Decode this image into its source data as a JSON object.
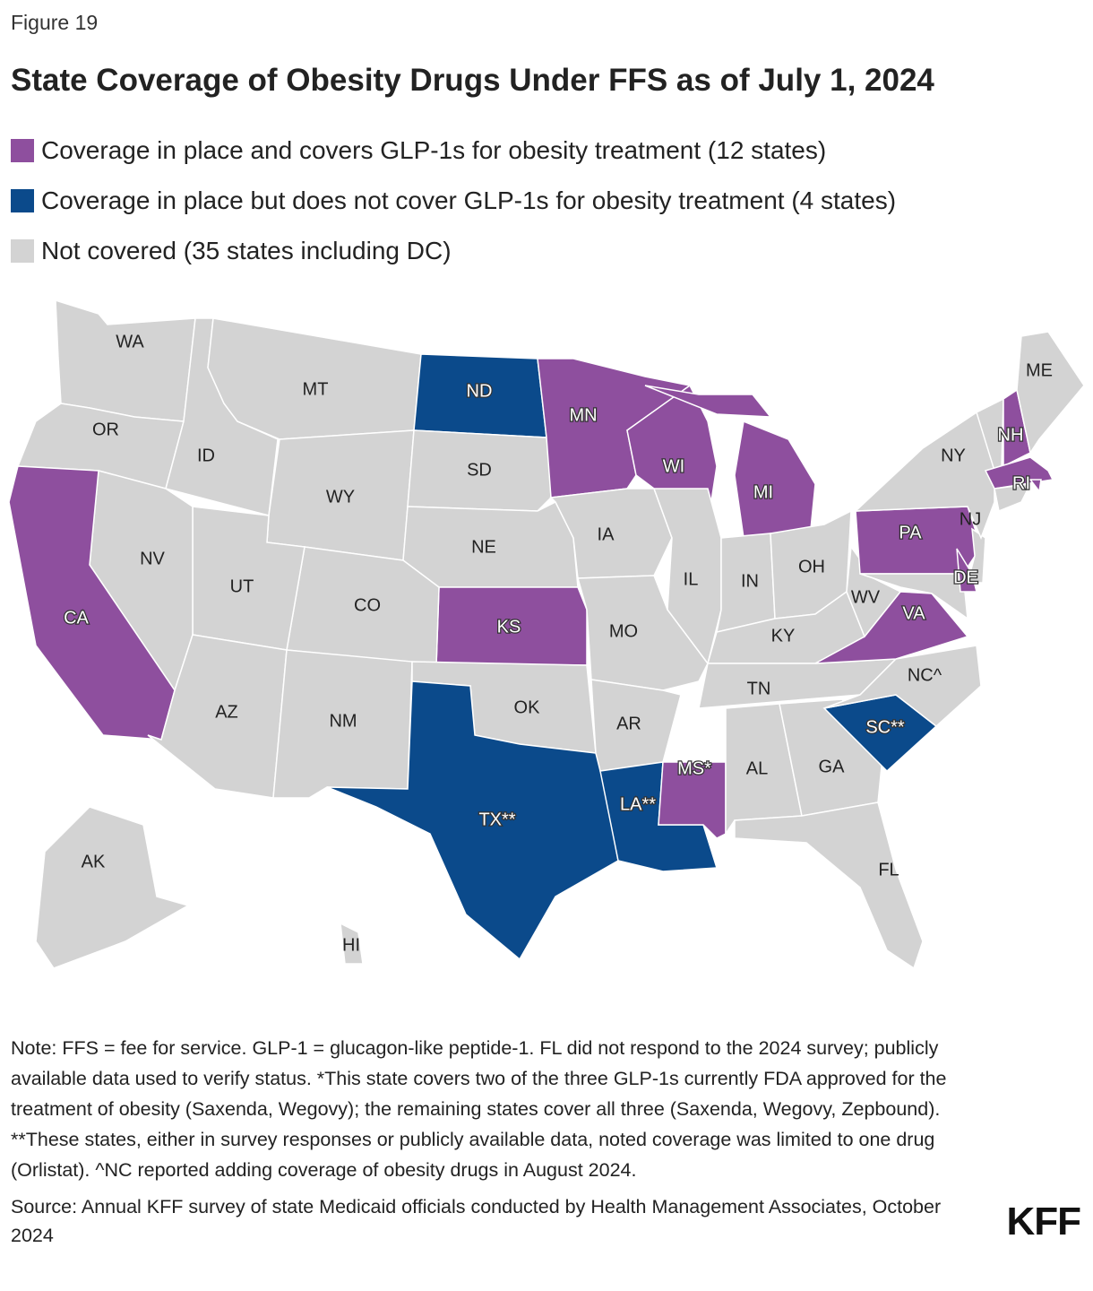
{
  "figure_label": "Figure 19",
  "title": "State Coverage of Obesity Drugs Under FFS as of July 1, 2024",
  "legend": [
    {
      "label": "Coverage in place and covers GLP-1s for obesity treatment (12 states)",
      "color": "#8e4f9e"
    },
    {
      "label": "Coverage in place but does not cover GLP-1s for obesity treatment (4 states)",
      "color": "#0b4a8b"
    },
    {
      "label": "Not covered (35 states including DC)",
      "color": "#d3d3d3"
    }
  ],
  "states": [
    {
      "label": "WA",
      "color": "#d3d3d3"
    },
    {
      "label": "OR",
      "color": "#d3d3d3"
    },
    {
      "label": "ID",
      "color": "#d3d3d3"
    },
    {
      "label": "MT",
      "color": "#d3d3d3"
    },
    {
      "label": "WY",
      "color": "#d3d3d3"
    },
    {
      "label": "ND",
      "color": "#0b4a8b"
    },
    {
      "label": "SD",
      "color": "#d3d3d3"
    },
    {
      "label": "NE",
      "color": "#d3d3d3"
    },
    {
      "label": "KS",
      "color": "#8e4f9e"
    },
    {
      "label": "CO",
      "color": "#d3d3d3"
    },
    {
      "label": "UT",
      "color": "#d3d3d3"
    },
    {
      "label": "NV",
      "color": "#d3d3d3"
    },
    {
      "label": "CA",
      "color": "#8e4f9e"
    },
    {
      "label": "AZ",
      "color": "#d3d3d3"
    },
    {
      "label": "NM",
      "color": "#d3d3d3"
    },
    {
      "label": "OK",
      "color": "#d3d3d3"
    },
    {
      "label": "TX**",
      "color": "#0b4a8b"
    },
    {
      "label": "MN",
      "color": "#8e4f9e"
    },
    {
      "label": "IA",
      "color": "#d3d3d3"
    },
    {
      "label": "MO",
      "color": "#d3d3d3"
    },
    {
      "label": "AR",
      "color": "#d3d3d3"
    },
    {
      "label": "LA**",
      "color": "#0b4a8b"
    },
    {
      "label": "MS*",
      "color": "#8e4f9e"
    },
    {
      "label": "WI",
      "color": "#8e4f9e"
    },
    {
      "label": "IL",
      "color": "#d3d3d3"
    },
    {
      "label": "MI",
      "color": "#8e4f9e"
    },
    {
      "label": "IN",
      "color": "#d3d3d3"
    },
    {
      "label": "OH",
      "color": "#d3d3d3"
    },
    {
      "label": "KY",
      "color": "#d3d3d3"
    },
    {
      "label": "TN",
      "color": "#d3d3d3"
    },
    {
      "label": "AL",
      "color": "#d3d3d3"
    },
    {
      "label": "GA",
      "color": "#d3d3d3"
    },
    {
      "label": "FL",
      "color": "#d3d3d3"
    },
    {
      "label": "SC**",
      "color": "#0b4a8b"
    },
    {
      "label": "NC^",
      "color": "#d3d3d3"
    },
    {
      "label": "VA",
      "color": "#8e4f9e"
    },
    {
      "label": "WV",
      "color": "#d3d3d3"
    },
    {
      "label": "PA",
      "color": "#8e4f9e"
    },
    {
      "label": null,
      "color": "#d3d3d3"
    },
    {
      "label": "DE",
      "color": "#8e4f9e"
    },
    {
      "label": "NJ",
      "color": "#d3d3d3"
    },
    {
      "label": "NY",
      "color": "#d3d3d3"
    },
    {
      "label": null,
      "color": "#d3d3d3"
    },
    {
      "label": "NH",
      "color": "#8e4f9e"
    },
    {
      "label": "ME",
      "color": "#d3d3d3"
    },
    {
      "label": null,
      "color": "#8e4f9e"
    },
    {
      "label": "RI",
      "color": "#8e4f9e"
    },
    {
      "label": null,
      "color": "#d3d3d3"
    },
    {
      "label": "AK",
      "color": "#d3d3d3"
    },
    {
      "label": "HI",
      "color": "#d3d3d3"
    }
  ],
  "note": "Note: FFS = fee for service. GLP-1 = glucagon-like peptide-1. FL did not respond to the 2024 survey; publicly available data used to verify status. *This state covers two of the three GLP-1s currently FDA approved for the treatment of obesity (Saxenda, Wegovy); the remaining states cover all three (Saxenda, Wegovy, Zepbound). **These states, either in survey responses or publicly available data, noted coverage was limited to one drug (Orlistat). ^NC reported adding coverage of obesity drugs in August 2024.",
  "source": "Source: Annual KFF survey of state Medicaid officials conducted by Health Management Associates, October 2024",
  "logo": "KFF"
}
